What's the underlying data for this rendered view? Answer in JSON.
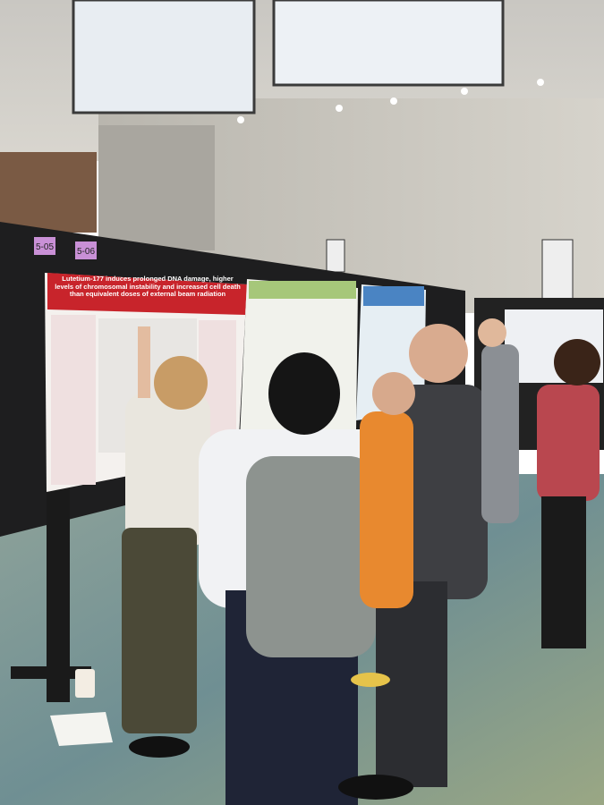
{
  "board_labels": [
    "5-05",
    "5-06"
  ],
  "poster": {
    "title": "Lutetium-177 induces prolonged DNA damage, higher levels of chromosomal instability and increased cell death than equivalent doses of external beam radiation"
  }
}
